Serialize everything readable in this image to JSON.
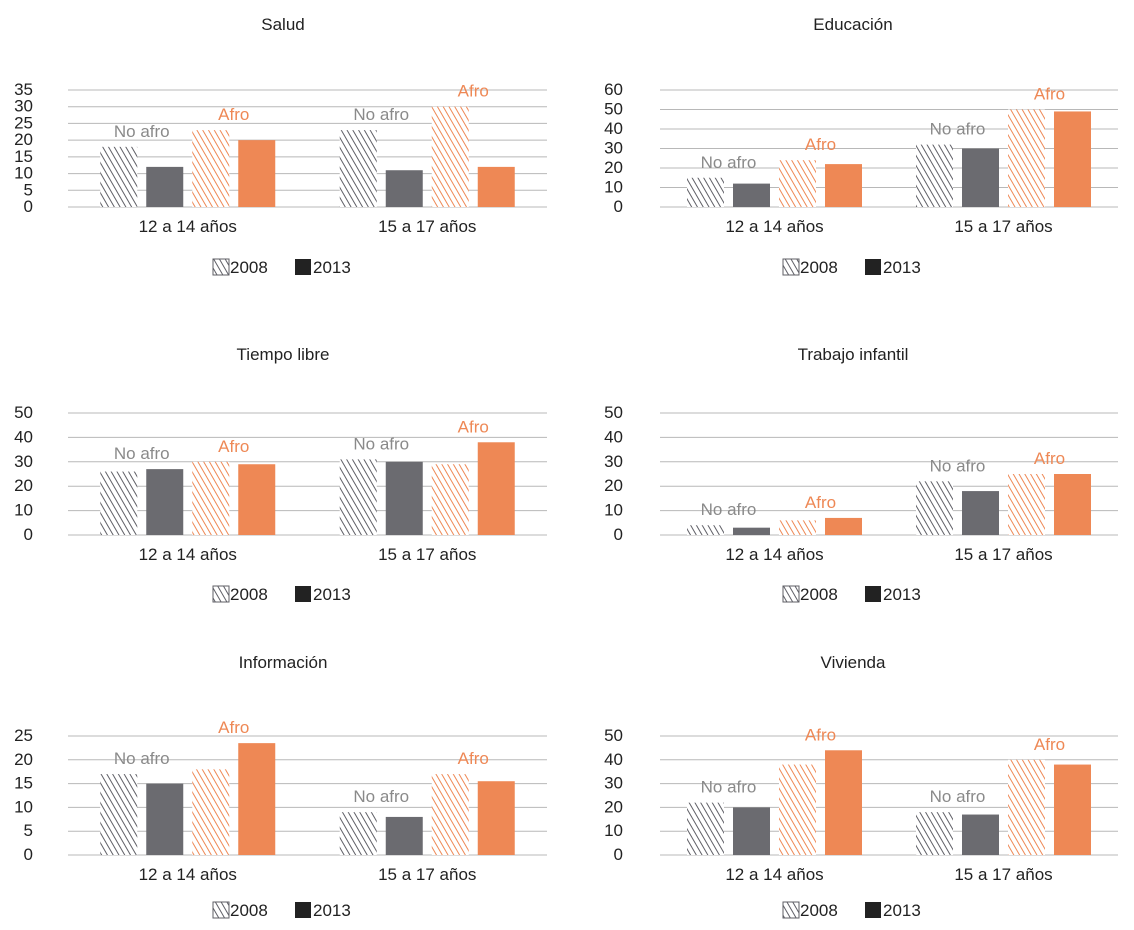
{
  "legend": [
    "2008",
    "2013"
  ],
  "group_labels": [
    "No afro",
    "Afro"
  ],
  "colors": {
    "no_afro_2008": "#5f5f66",
    "no_afro_2013": "#6b6b70",
    "afro_2008": "#ee8855",
    "afro_2013": "#ee8855",
    "label_no_afro": "#8a8a8a",
    "label_afro": "#ee8855",
    "legend_2013": "#222222"
  },
  "chart_data": [
    {
      "type": "bar",
      "title": "Salud",
      "categories": [
        "12 a 14 años",
        "15 a 17 años"
      ],
      "yticks": [
        0,
        5,
        10,
        15,
        20,
        25,
        30,
        35
      ],
      "ylim": [
        0,
        35
      ],
      "grid": true,
      "legend_position": "bottom",
      "series": [
        {
          "group": "No afro",
          "year": "2008",
          "values": [
            18,
            23
          ]
        },
        {
          "group": "No afro",
          "year": "2013",
          "values": [
            12,
            11
          ]
        },
        {
          "group": "Afro",
          "year": "2008",
          "values": [
            23,
            30
          ]
        },
        {
          "group": "Afro",
          "year": "2013",
          "values": [
            20,
            12
          ]
        }
      ]
    },
    {
      "type": "bar",
      "title": "Educación",
      "categories": [
        "12 a 14 años",
        "15 a 17 años"
      ],
      "yticks": [
        0,
        10,
        20,
        30,
        40,
        50,
        60
      ],
      "ylim": [
        0,
        60
      ],
      "grid": true,
      "legend_position": "bottom",
      "series": [
        {
          "group": "No afro",
          "year": "2008",
          "values": [
            15,
            32
          ]
        },
        {
          "group": "No afro",
          "year": "2013",
          "values": [
            12,
            30
          ]
        },
        {
          "group": "Afro",
          "year": "2008",
          "values": [
            24,
            50
          ]
        },
        {
          "group": "Afro",
          "year": "2013",
          "values": [
            22,
            49
          ]
        }
      ]
    },
    {
      "type": "bar",
      "title": "Tiempo libre",
      "categories": [
        "12 a 14 años",
        "15 a 17 años"
      ],
      "yticks": [
        0,
        10,
        20,
        30,
        40,
        50
      ],
      "ylim": [
        0,
        50
      ],
      "grid": true,
      "legend_position": "bottom",
      "series": [
        {
          "group": "No afro",
          "year": "2008",
          "values": [
            26,
            31
          ]
        },
        {
          "group": "No afro",
          "year": "2013",
          "values": [
            27,
            30
          ]
        },
        {
          "group": "Afro",
          "year": "2008",
          "values": [
            30,
            29
          ]
        },
        {
          "group": "Afro",
          "year": "2013",
          "values": [
            29,
            38
          ]
        }
      ]
    },
    {
      "type": "bar",
      "title": "Trabajo infantil",
      "categories": [
        "12 a 14 años",
        "15 a 17 años"
      ],
      "yticks": [
        0,
        10,
        20,
        30,
        40,
        50
      ],
      "ylim": [
        0,
        50
      ],
      "grid": true,
      "legend_position": "bottom",
      "series": [
        {
          "group": "No afro",
          "year": "2008",
          "values": [
            4,
            22
          ]
        },
        {
          "group": "No afro",
          "year": "2013",
          "values": [
            3,
            18
          ]
        },
        {
          "group": "Afro",
          "year": "2008",
          "values": [
            6,
            25
          ]
        },
        {
          "group": "Afro",
          "year": "2013",
          "values": [
            7,
            25
          ]
        }
      ]
    },
    {
      "type": "bar",
      "title": "Información",
      "categories": [
        "12 a 14 años",
        "15 a 17 años"
      ],
      "yticks": [
        0,
        5,
        10,
        15,
        20,
        25
      ],
      "ylim": [
        0,
        25
      ],
      "grid": true,
      "legend_position": "bottom",
      "series": [
        {
          "group": "No afro",
          "year": "2008",
          "values": [
            17,
            9
          ]
        },
        {
          "group": "No afro",
          "year": "2013",
          "values": [
            15,
            8
          ]
        },
        {
          "group": "Afro",
          "year": "2008",
          "values": [
            18,
            17
          ]
        },
        {
          "group": "Afro",
          "year": "2013",
          "values": [
            23.5,
            15.5
          ]
        }
      ]
    },
    {
      "type": "bar",
      "title": "Vivienda",
      "categories": [
        "12 a 14 años",
        "15 a 17 años"
      ],
      "yticks": [
        0,
        10,
        20,
        30,
        40,
        50
      ],
      "ylim": [
        0,
        50
      ],
      "grid": true,
      "legend_position": "bottom",
      "series": [
        {
          "group": "No afro",
          "year": "2008",
          "values": [
            22,
            18
          ]
        },
        {
          "group": "No afro",
          "year": "2013",
          "values": [
            20,
            17
          ]
        },
        {
          "group": "Afro",
          "year": "2008",
          "values": [
            38,
            40
          ]
        },
        {
          "group": "Afro",
          "year": "2013",
          "values": [
            44,
            38
          ]
        }
      ]
    }
  ]
}
